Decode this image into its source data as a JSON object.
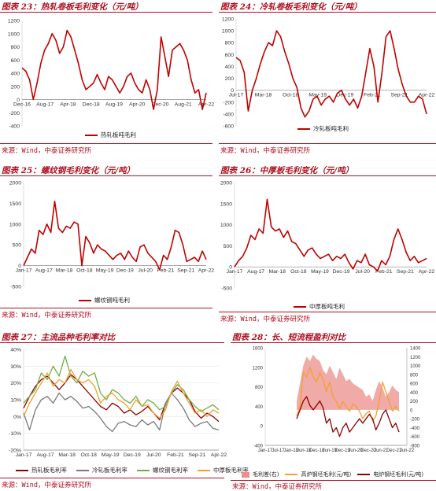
{
  "colors": {
    "title": "#b01020",
    "red": "#c00000",
    "grey": "#7a7a7a",
    "green": "#70ad47",
    "orange": "#f2a030",
    "darkred": "#8b0000",
    "pink": "#eb8f8b"
  },
  "panels": [
    {
      "title": "图表 23：热轧卷板毛利变化（元/吨）",
      "source": "来源：Wind，中泰证券研究所"
    },
    {
      "title": "图表 24：冷轧卷板毛利变化（元/吨）",
      "source": "来源：Wind，中泰证券研究所"
    },
    {
      "title": "图表 25：螺纹钢毛利变化（元/吨）",
      "source": "来源：Wind，中泰证券研究所"
    },
    {
      "title": "图表 26：中厚板毛利变化（元/吨）",
      "source": "来源：Wind，中泰证券研究所"
    },
    {
      "title": "图表 27：主流品种毛利率对比",
      "source": "来源：Wind，中泰证券研究所"
    },
    {
      "title": "图表 28：长、短流程盈利对比",
      "source": "来源：Wind，中泰证券研究所"
    }
  ],
  "chart_data": [
    {
      "type": "line",
      "ylim": [
        -400,
        1200
      ],
      "yticks": [
        "-400",
        "-200",
        "0",
        "200",
        "400",
        "600",
        "800",
        "1000",
        "1200"
      ],
      "xticks": [
        "Dec-16",
        "Aug-17",
        "Apr-18",
        "Dec-18",
        "Aug-19",
        "Apr-20",
        "Dec-20",
        "Aug-21",
        "Apr-22"
      ],
      "series": [
        {
          "name": "热轧板吨毛利",
          "values": [
            480,
            430,
            300,
            0,
            250,
            550,
            750,
            850,
            1000,
            900,
            700,
            800,
            1050,
            950,
            750,
            550,
            300,
            150,
            200,
            250,
            380,
            250,
            150,
            350,
            300,
            200,
            100,
            200,
            350,
            400,
            250,
            150,
            100,
            300,
            150,
            -150,
            150,
            950,
            650,
            350,
            750,
            800,
            850,
            750,
            600,
            300,
            100,
            150,
            -150,
            100
          ]
        }
      ]
    },
    {
      "type": "line",
      "ylim": [
        -600,
        1200
      ],
      "yticks": [
        "-600",
        "-400",
        "-200",
        "0",
        "200",
        "400",
        "600",
        "800",
        "1000",
        "1200"
      ],
      "xticks": [
        "Jul-17",
        "Mar-18",
        "Oct-18",
        "May-19",
        "Dec-19",
        "Feb-21",
        "Sep-21",
        "Apr-22"
      ],
      "series": [
        {
          "name": "冷轧板吨毛利",
          "values": [
            550,
            500,
            300,
            -350,
            0,
            200,
            450,
            650,
            800,
            750,
            1000,
            900,
            650,
            450,
            200,
            50,
            -300,
            -450,
            -350,
            -150,
            -100,
            -250,
            -150,
            -100,
            -200,
            -50,
            0,
            -150,
            -250,
            -150,
            -300,
            -100,
            300,
            700,
            400,
            -200,
            300,
            900,
            1000,
            700,
            350,
            100,
            -100,
            -200,
            -200,
            -100,
            -150,
            -400
          ]
        }
      ]
    },
    {
      "type": "line",
      "ylim": [
        -500,
        2000
      ],
      "yticks": [
        "-500",
        "0",
        "500",
        "1000",
        "1500",
        "2000"
      ],
      "xticks": [
        "Jan-17",
        "Aug-17",
        "Mar-18",
        "Oct-18",
        "May-19",
        "Dec-19",
        "Jul-20",
        "Feb-21",
        "Sep-21",
        "Apr-22"
      ],
      "series": [
        {
          "name": "螺纹钢吨毛利",
          "values": [
            0,
            200,
            400,
            300,
            850,
            750,
            1000,
            800,
            1550,
            900,
            800,
            950,
            900,
            1050,
            1000,
            0,
            700,
            550,
            300,
            500,
            400,
            350,
            250,
            150,
            250,
            300,
            150,
            350,
            200,
            100,
            450,
            500,
            300,
            200,
            100,
            -100,
            250,
            150,
            450,
            850,
            800,
            500,
            100,
            150,
            200,
            100,
            350,
            150
          ]
        }
      ]
    },
    {
      "type": "line",
      "ylim": [
        -500,
        2000
      ],
      "yticks": [
        "-500",
        "0",
        "500",
        "1000",
        "1500",
        "2000"
      ],
      "xticks": [
        "Jan-17",
        "Aug-17",
        "Mar-18",
        "Oct-18",
        "May-19",
        "Dec-19",
        "Jul-20",
        "Feb-21",
        "Sep-21",
        "Apr-22"
      ],
      "series": [
        {
          "name": "中厚板吨毛利",
          "values": [
            0,
            150,
            250,
            450,
            750,
            650,
            900,
            800,
            1600,
            950,
            850,
            900,
            700,
            850,
            600,
            550,
            400,
            250,
            400,
            450,
            300,
            200,
            250,
            300,
            150,
            250,
            200,
            300,
            100,
            -50,
            150,
            100,
            300,
            50,
            0,
            -100,
            150,
            50,
            250,
            650,
            900,
            650,
            350,
            150,
            250,
            100,
            150,
            200
          ]
        }
      ]
    },
    {
      "type": "line",
      "ylim": [
        -20,
        40
      ],
      "yticks": [
        "-20%",
        "-10%",
        "0%",
        "10%",
        "20%",
        "30%",
        "40%"
      ],
      "xticks": [
        "Jan-17",
        "Aug-17",
        "Mar-18",
        "Oct-18",
        "May-19",
        "Dec-19",
        "Jul-20",
        "Feb-21",
        "Sep-21",
        "Apr-22"
      ],
      "series": [
        {
          "name": "热轧板毛利率",
          "values": [
            5,
            12,
            18,
            22,
            24,
            20,
            16,
            20,
            25,
            22,
            18,
            14,
            10,
            6,
            4,
            8,
            6,
            2,
            4,
            1,
            3,
            6,
            2,
            -2,
            8,
            14,
            17,
            14,
            10,
            3,
            -1,
            2,
            0,
            -3
          ]
        },
        {
          "name": "冷轧板毛利率",
          "values": [
            2,
            -8,
            4,
            10,
            12,
            8,
            14,
            10,
            12,
            9,
            5,
            6,
            3,
            -1,
            -6,
            -9,
            -4,
            -3,
            -5,
            -6,
            -2,
            -5,
            -3,
            -8,
            8,
            14,
            10,
            5,
            -2,
            -6,
            -4,
            -3,
            -7,
            -8
          ]
        },
        {
          "name": "螺纹钢毛利率",
          "values": [
            8,
            12,
            16,
            26,
            22,
            30,
            24,
            36,
            24,
            20,
            27,
            24,
            26,
            14,
            10,
            16,
            14,
            10,
            8,
            12,
            6,
            10,
            8,
            4,
            6,
            14,
            19,
            16,
            10,
            6,
            3,
            5,
            7,
            4
          ]
        },
        {
          "name": "中厚板毛利率",
          "values": [
            0,
            8,
            14,
            20,
            26,
            18,
            22,
            20,
            28,
            22,
            20,
            22,
            18,
            8,
            12,
            14,
            10,
            8,
            4,
            10,
            6,
            7,
            2,
            -1,
            4,
            15,
            21,
            14,
            8,
            2,
            4,
            0,
            4,
            2
          ]
        }
      ]
    },
    {
      "type": "area",
      "ylim": [
        -400,
        1600
      ],
      "yticks": [
        "-400",
        "0",
        "400",
        "800",
        "1200",
        "1600"
      ],
      "ylim_right": [
        -800,
        1400
      ],
      "yticks_right": [
        "-800",
        "-600",
        "-400",
        "-200",
        "0",
        "200",
        "400",
        "600",
        "800",
        "1000",
        "1200",
        "1400"
      ],
      "xticks": [
        "Jan-17",
        "Jul-17",
        "Jan-18",
        "Jun-18",
        "Dec-18",
        "Jun-19",
        "Dec-19",
        "Jun-20",
        "Dec-20",
        "Jun-21",
        "Dec-21",
        "Jun-22"
      ],
      "series": [
        {
          "name": "毛利差(右)",
          "axis": "right",
          "values": [
            200,
            600,
            1000,
            1200,
            1100,
            1250,
            1150,
            1100,
            900,
            800,
            1000,
            850,
            700,
            950,
            800,
            650,
            700,
            600,
            550,
            500,
            450,
            300,
            350,
            200,
            450,
            650,
            500,
            300,
            400,
            550,
            450,
            400
          ]
        },
        {
          "name": "高炉钢坯毛利(元/吨)",
          "axis": "left",
          "values": [
            200,
            400,
            1100,
            1000,
            1200,
            1000,
            900,
            1100,
            950,
            700,
            900,
            600,
            500,
            350,
            500,
            400,
            300,
            450,
            400,
            300,
            150,
            250,
            300,
            100,
            200,
            500,
            900,
            700,
            500,
            300,
            400,
            300
          ]
        },
        {
          "name": "电炉钢坯毛利(元/吨)",
          "axis": "right",
          "values": [
            -200,
            0,
            200,
            300,
            100,
            0,
            100,
            200,
            50,
            -300,
            -200,
            -500,
            -400,
            -600,
            -400,
            -300,
            -500,
            -400,
            -300,
            -200,
            -300,
            -200,
            -100,
            -200,
            -450,
            -300,
            -100,
            0,
            -200,
            -400,
            -300,
            -500
          ]
        }
      ]
    }
  ]
}
